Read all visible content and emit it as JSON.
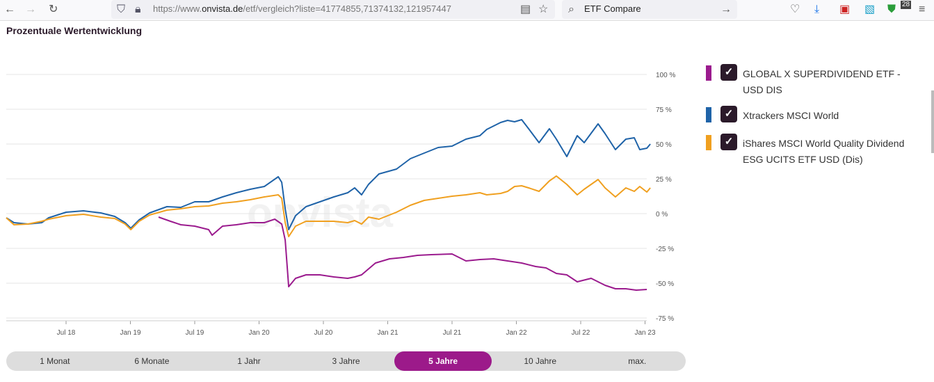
{
  "browser": {
    "url_prefix": "https://www.",
    "url_domain": "onvista.de",
    "url_path": "/etf/vergleich?liste=41774855,71374132,121957447",
    "search_text": "ETF Compare",
    "badge_count": "28"
  },
  "legend": [
    {
      "label": "GLOBAL X SUPERDIVIDEND ETF - USD DIS",
      "color": "#9b1b8e"
    },
    {
      "label": "Xtrackers MSCI World",
      "color": "#1f63a8"
    },
    {
      "label": "iShares MSCI World Quality Dividend ESG UCITS ETF USD (Dis)",
      "color": "#f0a020"
    }
  ],
  "ranges": [
    "1 Monat",
    "6 Monate",
    "1 Jahr",
    "3 Jahre",
    "5 Jahre",
    "10 Jahre",
    "max."
  ],
  "active_range": "5 Jahre",
  "chart_data": {
    "type": "line",
    "title": "Prozentuale Wertentwicklung",
    "watermark": "onvista",
    "ylim": [
      -75,
      100
    ],
    "yticks": [
      100,
      75,
      50,
      25,
      0,
      -25,
      -50,
      -75
    ],
    "ytick_labels": [
      "100 %",
      "75 %",
      "50 %",
      "25 %",
      "0 %",
      "-25 %",
      "-50 %",
      "-75 %"
    ],
    "xticks": [
      2018.5,
      2019,
      2019.5,
      2020,
      2020.5,
      2021,
      2021.5,
      2022,
      2022.5,
      2023
    ],
    "xtick_labels": [
      "Jul 18",
      "Jan 19",
      "Jul 19",
      "Jan 20",
      "Jul 20",
      "Jan 21",
      "Jul 21",
      "Jan 22",
      "Jul 22",
      "Jan 23"
    ],
    "xlim": [
      2018.035,
      2023.05
    ],
    "grid": true,
    "legend_position": "right",
    "x": [
      2018.035,
      2018.095,
      2018.203,
      2018.311,
      2018.365,
      2018.5,
      2018.635,
      2018.77,
      2018.878,
      2018.959,
      2019.003,
      2019.068,
      2019.149,
      2019.284,
      2019.392,
      2019.5,
      2019.608,
      2019.716,
      2019.824,
      2019.932,
      2020.041,
      2020.149,
      2020.176,
      2020.203,
      2020.23,
      2020.284,
      2020.365,
      2020.473,
      2020.581,
      2020.689,
      2020.743,
      2020.797,
      2020.851,
      2020.932,
      2021.068,
      2021.176,
      2021.284,
      2021.392,
      2021.5,
      2021.608,
      2021.716,
      2021.77,
      2021.878,
      2021.932,
      2021.986,
      2022.041,
      2022.095,
      2022.176,
      2022.257,
      2022.311,
      2022.392,
      2022.473,
      2022.527,
      2022.635,
      2022.689,
      2022.77,
      2022.851,
      2022.916,
      2022.959,
      2023.014,
      2023.041
    ],
    "series": [
      {
        "name": "Xtrackers MSCI World",
        "color": "#1f63a8",
        "values": [
          -3,
          -6.5,
          -7.5,
          -6.5,
          -3,
          1,
          2,
          0.5,
          -2,
          -6.5,
          -10.5,
          -4.5,
          0.5,
          5,
          4.5,
          8.5,
          8.5,
          12,
          15,
          17.5,
          19.5,
          26.5,
          22.5,
          3.5,
          -11.5,
          -1.5,
          5,
          8.5,
          12,
          15,
          18.5,
          13.5,
          21,
          28.5,
          32,
          39.5,
          43.5,
          47.5,
          48.5,
          53.5,
          56,
          60.5,
          65.5,
          67,
          66,
          67.5,
          61,
          51,
          61,
          53.5,
          41,
          56,
          51,
          64.5,
          57.5,
          46,
          53.5,
          54.5,
          46,
          47,
          50
        ]
      },
      {
        "name": "iShares MSCI World Quality Dividend ESG UCITS ETF USD (Dis)",
        "color": "#f0a020",
        "values": [
          -3,
          -8,
          -7.5,
          -5.5,
          -4,
          -1.5,
          -0.5,
          -2.5,
          -3.5,
          -7.5,
          -11.5,
          -5.5,
          -1,
          2.5,
          3.5,
          5,
          5.5,
          7.5,
          8.5,
          10,
          12,
          13.5,
          11,
          -6.5,
          -16.5,
          -9,
          -5.5,
          -5.5,
          -5.5,
          -6.5,
          -5,
          -7.5,
          -2.5,
          -4,
          1,
          6,
          9.5,
          11,
          12.5,
          13.5,
          15,
          13.5,
          14.5,
          16,
          19.5,
          20,
          18.5,
          16,
          23.5,
          27,
          21,
          13.5,
          17.5,
          24.5,
          18.5,
          12,
          18.5,
          16,
          19.5,
          15.5,
          18.5
        ]
      },
      {
        "name": "GLOBAL X SUPERDIVIDEND ETF - USD DIS",
        "color": "#9b1b8e",
        "x": [
          2019.219,
          2019.311,
          2019.392,
          2019.5,
          2019.608,
          2019.635,
          2019.716,
          2019.824,
          2019.932,
          2020.041,
          2020.122,
          2020.176,
          2020.203,
          2020.23,
          2020.284,
          2020.365,
          2020.473,
          2020.581,
          2020.689,
          2020.743,
          2020.797,
          2020.905,
          2021.014,
          2021.122,
          2021.23,
          2021.338,
          2021.5,
          2021.608,
          2021.716,
          2021.824,
          2021.932,
          2022.041,
          2022.149,
          2022.23,
          2022.311,
          2022.392,
          2022.473,
          2022.581,
          2022.689,
          2022.77,
          2022.851,
          2022.932,
          2023.014
        ],
        "values": [
          -2.5,
          -5.5,
          -8,
          -9,
          -11.5,
          -15.5,
          -9,
          -8,
          -6.5,
          -6.5,
          -4,
          -7.5,
          -19,
          -52.5,
          -46.5,
          -44,
          -44,
          -45.5,
          -46.5,
          -45.5,
          -44,
          -35.5,
          -32.5,
          -31.5,
          -30,
          -29.5,
          -29,
          -34,
          -33,
          -32.5,
          -34,
          -35.5,
          -38,
          -39,
          -43,
          -44,
          -49,
          -46.5,
          -51.5,
          -54,
          -54,
          -55,
          -54.5
        ]
      }
    ]
  }
}
